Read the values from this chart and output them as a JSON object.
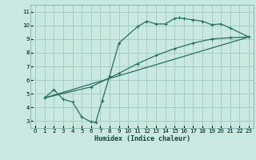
{
  "bg_color": "#c8e8e0",
  "grid_color": "#a8ccc8",
  "line_color": "#2a6e62",
  "marker": "+",
  "xlabel": "Humidex (Indice chaleur)",
  "xlim": [
    -0.5,
    23.5
  ],
  "ylim": [
    2.5,
    11.5
  ],
  "xticks": [
    0,
    1,
    2,
    3,
    4,
    5,
    6,
    7,
    8,
    9,
    10,
    11,
    12,
    13,
    14,
    15,
    16,
    17,
    18,
    19,
    20,
    21,
    22,
    23
  ],
  "yticks": [
    3,
    4,
    5,
    6,
    7,
    8,
    9,
    10,
    11
  ],
  "curve1_x": [
    1,
    2,
    3,
    4,
    5,
    6,
    6.5,
    7.2,
    8,
    9,
    11,
    12,
    13,
    14,
    15,
    15.5,
    16,
    17,
    18,
    19,
    20,
    21,
    23
  ],
  "curve1_y": [
    4.7,
    5.3,
    4.6,
    4.4,
    3.3,
    2.95,
    2.9,
    4.5,
    6.3,
    8.7,
    9.9,
    10.3,
    10.1,
    10.1,
    10.5,
    10.55,
    10.5,
    10.4,
    10.3,
    10.05,
    10.1,
    9.8,
    9.15
  ],
  "line2_x": [
    1,
    23
  ],
  "line2_y": [
    4.7,
    9.15
  ],
  "line3_x": [
    1,
    6,
    9,
    11,
    13,
    15,
    17,
    19,
    21,
    23
  ],
  "line3_y": [
    4.7,
    5.5,
    6.5,
    7.2,
    7.8,
    8.3,
    8.7,
    9.0,
    9.1,
    9.15
  ]
}
